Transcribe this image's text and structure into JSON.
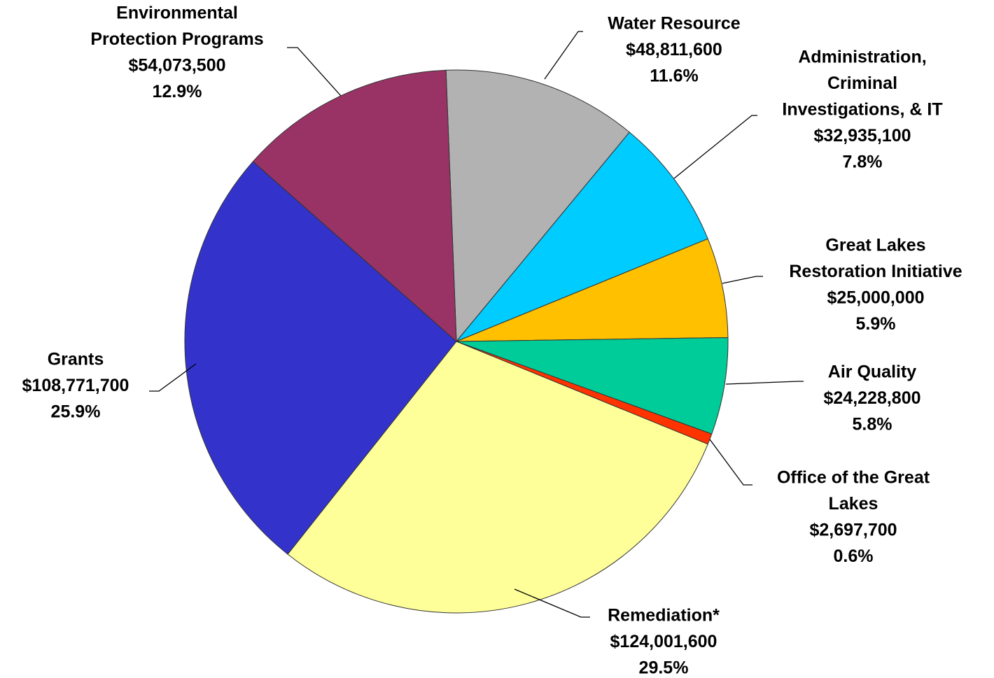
{
  "chart_data": {
    "type": "pie",
    "categories": [
      [
        "Water Resource"
      ],
      [
        "Administration,",
        "Criminal",
        "Investigations, & IT"
      ],
      [
        "Great Lakes",
        "Restoration Initiative"
      ],
      [
        "Air Quality"
      ],
      [
        "Office of the Great",
        "Lakes"
      ],
      [
        "Remediation*"
      ],
      [
        "Grants"
      ],
      [
        "Environmental",
        "Protection Programs"
      ]
    ],
    "values": [
      48811600,
      32935100,
      25000000,
      24228800,
      2697700,
      124001600,
      108771700,
      54073500
    ],
    "value_labels": [
      "$48,811,600",
      "$32,935,100",
      "$25,000,000",
      "$24,228,800",
      "$2,697,700",
      "$124,001,600",
      "$108,771,700",
      "$54,073,500"
    ],
    "percent_labels": [
      "11.6%",
      "7.8%",
      "5.9%",
      "5.8%",
      "0.6%",
      "29.5%",
      "25.9%",
      "12.9%"
    ],
    "colors": [
      "#b2b2b2",
      "#00ccff",
      "#ffc000",
      "#00cc99",
      "#ff3300",
      "#ffff99",
      "#3333cc",
      "#993366"
    ]
  }
}
